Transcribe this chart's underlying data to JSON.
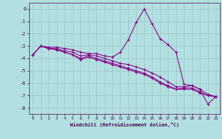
{
  "xlabel": "Windchill (Refroidissement éolien,°C)",
  "background_color": "#b2e0e0",
  "line_color": "#880088",
  "grid_color": "#a0c8c8",
  "x": [
    0,
    1,
    2,
    3,
    4,
    5,
    6,
    7,
    8,
    9,
    10,
    11,
    12,
    13,
    14,
    15,
    16,
    17,
    18,
    19,
    20,
    21,
    22,
    23
  ],
  "series": [
    [
      -3.7,
      -3.0,
      -3.1,
      -3.1,
      -3.2,
      -3.3,
      -3.5,
      -3.6,
      -3.6,
      -3.8,
      -3.9,
      -3.5,
      -2.5,
      -1.1,
      0.0,
      -1.2,
      -2.4,
      -2.9,
      -3.5,
      -6.1,
      -6.2,
      -6.5,
      -7.7,
      -7.1
    ],
    [
      -3.7,
      -3.0,
      -3.2,
      -3.2,
      -3.4,
      -3.5,
      -3.8,
      -3.7,
      -3.8,
      -4.0,
      -4.2,
      -4.4,
      -4.5,
      -4.7,
      -4.9,
      -5.2,
      -5.5,
      -5.9,
      -6.3,
      -6.3,
      -6.2,
      -6.5,
      -6.9,
      -7.1
    ],
    [
      -3.7,
      -3.0,
      -3.2,
      -3.3,
      -3.5,
      -3.7,
      -4.0,
      -3.8,
      -4.0,
      -4.2,
      -4.4,
      -4.6,
      -4.8,
      -5.0,
      -5.2,
      -5.5,
      -5.9,
      -6.2,
      -6.5,
      -6.4,
      -6.4,
      -6.7,
      -7.0,
      -7.1
    ],
    [
      -3.7,
      -3.0,
      -3.2,
      -3.3,
      -3.5,
      -3.7,
      -4.1,
      -3.9,
      -4.1,
      -4.3,
      -4.5,
      -4.7,
      -4.9,
      -5.1,
      -5.3,
      -5.6,
      -6.0,
      -6.3,
      -6.5,
      -6.5,
      -6.5,
      -6.8,
      -7.0,
      -7.1
    ]
  ],
  "ylim": [
    -8.5,
    0.5
  ],
  "yticks": [
    0,
    -1,
    -2,
    -3,
    -4,
    -5,
    -6,
    -7,
    -8
  ],
  "xlim": [
    -0.5,
    23.5
  ],
  "xticks": [
    0,
    1,
    2,
    3,
    4,
    5,
    6,
    7,
    8,
    9,
    10,
    11,
    12,
    13,
    14,
    15,
    16,
    17,
    18,
    19,
    20,
    21,
    22,
    23
  ]
}
